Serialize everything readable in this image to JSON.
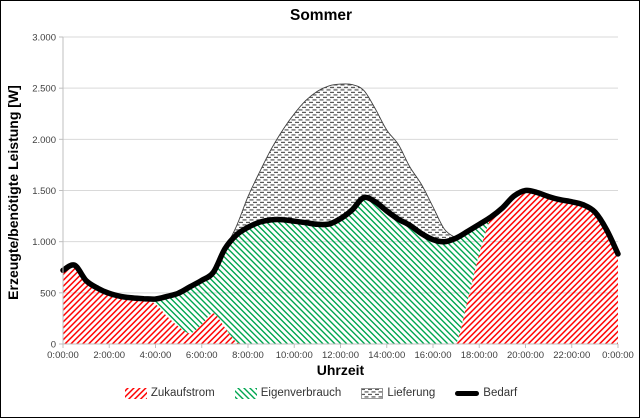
{
  "title": "Sommer",
  "y_axis": {
    "title": "Erzeugte/benötigte Leistung [W]",
    "ticks": [
      "3.000",
      "2.500",
      "2.000",
      "1.500",
      "1.000",
      "500",
      "0"
    ],
    "min": 0,
    "max": 3000,
    "step": 500
  },
  "x_axis": {
    "title": "Uhrzeit",
    "ticks": [
      "0:00:00",
      "2:00:00",
      "4:00:00",
      "6:00:00",
      "8:00:00",
      "10:00:00",
      "12:00:00",
      "14:00:00",
      "16:00:00",
      "18:00:00",
      "20:00:00",
      "22:00:00",
      "0:00:00"
    ]
  },
  "legend": [
    {
      "label": "Zukaufstrom",
      "swatch": "red-backslash-hatch"
    },
    {
      "label": "Eigenverbrauch",
      "swatch": "green-slash-hatch"
    },
    {
      "label": "Lieferung",
      "swatch": "gray-dash-pattern"
    },
    {
      "label": "Bedarf",
      "swatch": "thick-black-line"
    }
  ],
  "colors": {
    "zukaufstrom": "#FF0000",
    "eigenverbrauch": "#00A650",
    "lieferung_dots": "#595959",
    "bedarf": "#000000",
    "gridline": "#D9D9D9",
    "axis_line": "#BFBFBF",
    "tick_label": "#404040",
    "legend_text": "#333333"
  },
  "chart_data": {
    "type": "area",
    "title": "Sommer",
    "xlabel": "Uhrzeit",
    "ylabel": "Erzeugte/benötigte Leistung [W]",
    "x_unit": "hours",
    "x_range": [
      0,
      24
    ],
    "y_range": [
      0,
      3000
    ],
    "grid": true,
    "legend_position": "bottom",
    "stacking_note": "Zukaufstrom and Eigenverbrauch stack to equal Bedarf; Lieferung sits above the Bedarf line (PV surplus).",
    "x_hours": [
      0,
      0.5,
      1,
      1.5,
      2,
      2.5,
      3,
      3.5,
      4,
      4.5,
      5,
      5.5,
      6,
      6.5,
      7,
      7.5,
      8,
      8.5,
      9,
      9.5,
      10,
      10.5,
      11,
      11.5,
      12,
      12.5,
      13,
      13.5,
      14,
      14.5,
      15,
      15.5,
      16,
      16.5,
      17,
      17.5,
      18,
      18.5,
      19,
      19.5,
      20,
      20.5,
      21,
      21.5,
      22,
      22.5,
      23,
      23.5,
      24
    ],
    "series": [
      {
        "key": "zukaufstrom",
        "name": "Zukaufstrom",
        "render": "stacked-area-bottom",
        "pattern": "red-backslash-hatch",
        "values": [
          720,
          770,
          620,
          545,
          495,
          465,
          450,
          443,
          390,
          270,
          170,
          105,
          190,
          300,
          160,
          20,
          0,
          0,
          0,
          0,
          0,
          0,
          0,
          0,
          0,
          0,
          0,
          0,
          0,
          0,
          0,
          0,
          0,
          0,
          0,
          430,
          880,
          1230,
          1330,
          1445,
          1500,
          1480,
          1440,
          1410,
          1390,
          1360,
          1290,
          1120,
          880
        ]
      },
      {
        "key": "eigenverbrauch",
        "name": "Eigenverbrauch",
        "render": "stacked-area-top",
        "pattern": "green-slash-hatch",
        "values": [
          0,
          0,
          0,
          0,
          0,
          0,
          0,
          0,
          50,
          195,
          327,
          455,
          432,
          400,
          770,
          1045,
          1140,
          1190,
          1213,
          1215,
          1200,
          1185,
          1170,
          1172,
          1225,
          1310,
          1430,
          1390,
          1300,
          1220,
          1160,
          1080,
          1020,
          1000,
          1035,
          670,
          290,
          10,
          0,
          0,
          0,
          0,
          0,
          0,
          0,
          0,
          0,
          0,
          0
        ]
      },
      {
        "key": "lieferung",
        "name": "Lieferung",
        "render": "area-above-demand",
        "pattern": "gray-dash-pattern",
        "values": [
          0,
          0,
          0,
          0,
          0,
          0,
          0,
          0,
          0,
          0,
          0,
          0,
          0,
          0,
          0,
          85,
          300,
          490,
          690,
          875,
          1050,
          1195,
          1300,
          1350,
          1315,
          1225,
          1050,
          910,
          790,
          730,
          570,
          480,
          320,
          120,
          0,
          0,
          0,
          0,
          0,
          0,
          0,
          0,
          0,
          0,
          0,
          0,
          0,
          0,
          0
        ]
      },
      {
        "key": "bedarf",
        "name": "Bedarf",
        "render": "thick-line",
        "values": [
          720,
          770,
          620,
          545,
          495,
          465,
          450,
          443,
          440,
          465,
          497,
          560,
          622,
          700,
          930,
          1065,
          1140,
          1190,
          1213,
          1215,
          1200,
          1185,
          1170,
          1172,
          1225,
          1310,
          1430,
          1390,
          1300,
          1220,
          1160,
          1080,
          1020,
          1000,
          1035,
          1100,
          1170,
          1240,
          1330,
          1445,
          1500,
          1480,
          1440,
          1410,
          1390,
          1360,
          1290,
          1120,
          880
        ]
      }
    ]
  }
}
